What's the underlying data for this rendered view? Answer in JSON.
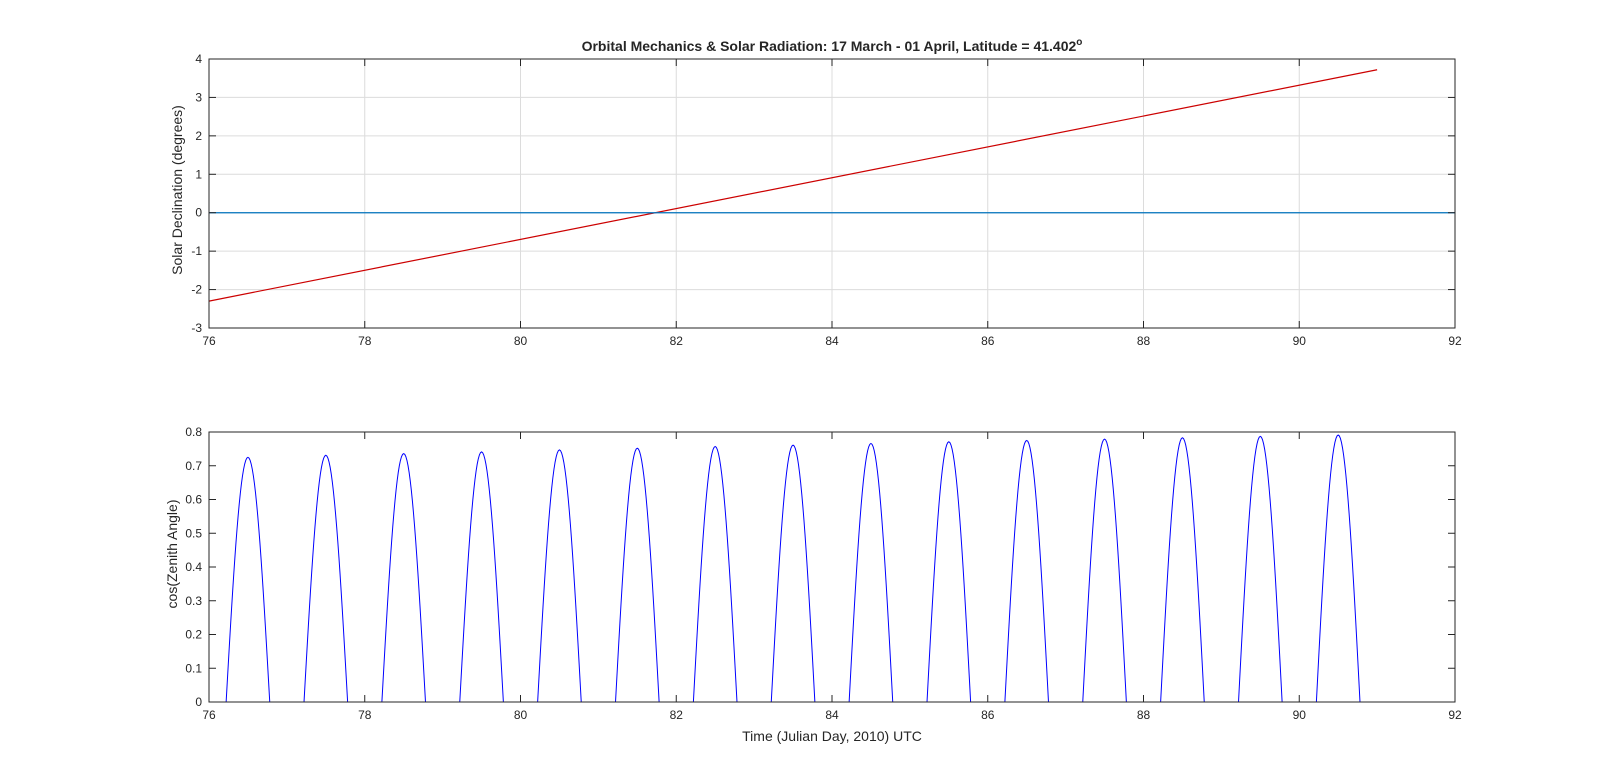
{
  "figure": {
    "title": "Orbital Mechanics & Solar Radiation:  17 March - 01 April, Latitude = 41.402",
    "title_degree_symbol": "o"
  },
  "colors": {
    "declination_line": "#cc0000",
    "zero_line": "#0072bd",
    "cosine_line": "#0000ff",
    "grid": "#dcdcdc",
    "axes": "#262626"
  },
  "chart_data": [
    {
      "type": "line",
      "title": "Orbital Mechanics & Solar Radiation:  17 March - 01 April, Latitude = 41.402°",
      "xlabel": "",
      "ylabel": "Solar Declination (degrees)",
      "xlim": [
        76,
        92
      ],
      "ylim": [
        -3,
        4
      ],
      "xticks": [
        "76",
        "78",
        "80",
        "82",
        "84",
        "86",
        "88",
        "90",
        "92"
      ],
      "yticks": [
        "-3",
        "-2",
        "-1",
        "0",
        "1",
        "2",
        "3",
        "4"
      ],
      "grid": true,
      "series": [
        {
          "x": [
            76,
            91
          ],
          "y": [
            -2.3,
            3.72
          ]
        },
        {
          "x": [
            76,
            92
          ],
          "y": [
            0,
            0
          ]
        }
      ]
    },
    {
      "type": "line",
      "xlabel": "Time (Julian Day, 2010) UTC",
      "ylabel": "cos(Zenith Angle)",
      "xlim": [
        76,
        92
      ],
      "ylim": [
        0,
        0.8
      ],
      "xticks": [
        "76",
        "78",
        "80",
        "82",
        "84",
        "86",
        "88",
        "90",
        "92"
      ],
      "yticks": [
        "0",
        "0.1",
        "0.2",
        "0.3",
        "0.4",
        "0.5",
        "0.6",
        "0.7",
        "0.8"
      ],
      "grid": false,
      "series": [
        {
          "pattern": "daily clipped cosine",
          "x_start": 76,
          "x_end": 91,
          "day_centers": [
            76.5,
            77.5,
            78.5,
            79.5,
            80.5,
            81.5,
            82.5,
            83.5,
            84.5,
            85.5,
            86.5,
            87.5,
            88.5,
            89.5,
            90.5
          ],
          "peak_values": [
            0.725,
            0.731,
            0.736,
            0.741,
            0.747,
            0.752,
            0.757,
            0.761,
            0.766,
            0.771,
            0.775,
            0.779,
            0.783,
            0.787,
            0.791
          ],
          "day_length": 0.56
        }
      ]
    }
  ]
}
